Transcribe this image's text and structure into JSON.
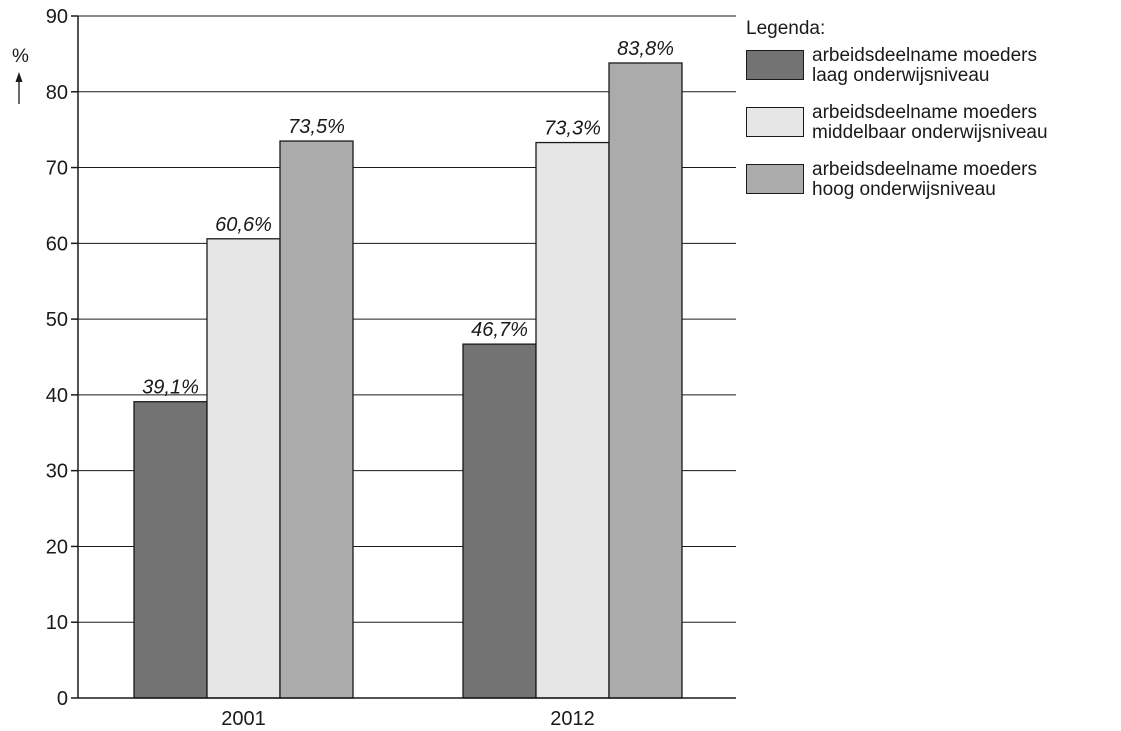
{
  "chart_data": {
    "type": "bar",
    "categories": [
      "2001",
      "2012"
    ],
    "series": [
      {
        "name": "arbeidsdeelname moeders laag onderwijsniveau",
        "values": [
          39.1,
          46.7
        ],
        "labels": [
          "39,1%",
          "46,7%"
        ],
        "color": "#737373"
      },
      {
        "name": "arbeidsdeelname moeders middelbaar onderwijsniveau",
        "values": [
          60.6,
          73.3
        ],
        "labels": [
          "60,6%",
          "73,3%"
        ],
        "color": "#e6e6e6"
      },
      {
        "name": "arbeidsdeelname moeders hoog onderwijsniveau",
        "values": [
          73.5,
          83.8
        ],
        "labels": [
          "73,5%",
          "83,8%"
        ],
        "color": "#ababab"
      }
    ],
    "ylabel": "%",
    "ylim": [
      0,
      90
    ],
    "yticks": [
      0,
      10,
      20,
      30,
      40,
      50,
      60,
      70,
      80,
      90
    ],
    "grid": true,
    "legend_position": "right"
  },
  "legend": {
    "title": "Legenda:",
    "items": [
      {
        "line1": "arbeidsdeelname moeders",
        "line2": "laag onderwijsniveau",
        "color": "#737373"
      },
      {
        "line1": "arbeidsdeelname moeders",
        "line2": "middelbaar onderwijsniveau",
        "color": "#e6e6e6"
      },
      {
        "line1": "arbeidsdeelname moeders",
        "line2": "hoog onderwijsniveau",
        "color": "#ababab"
      }
    ]
  }
}
